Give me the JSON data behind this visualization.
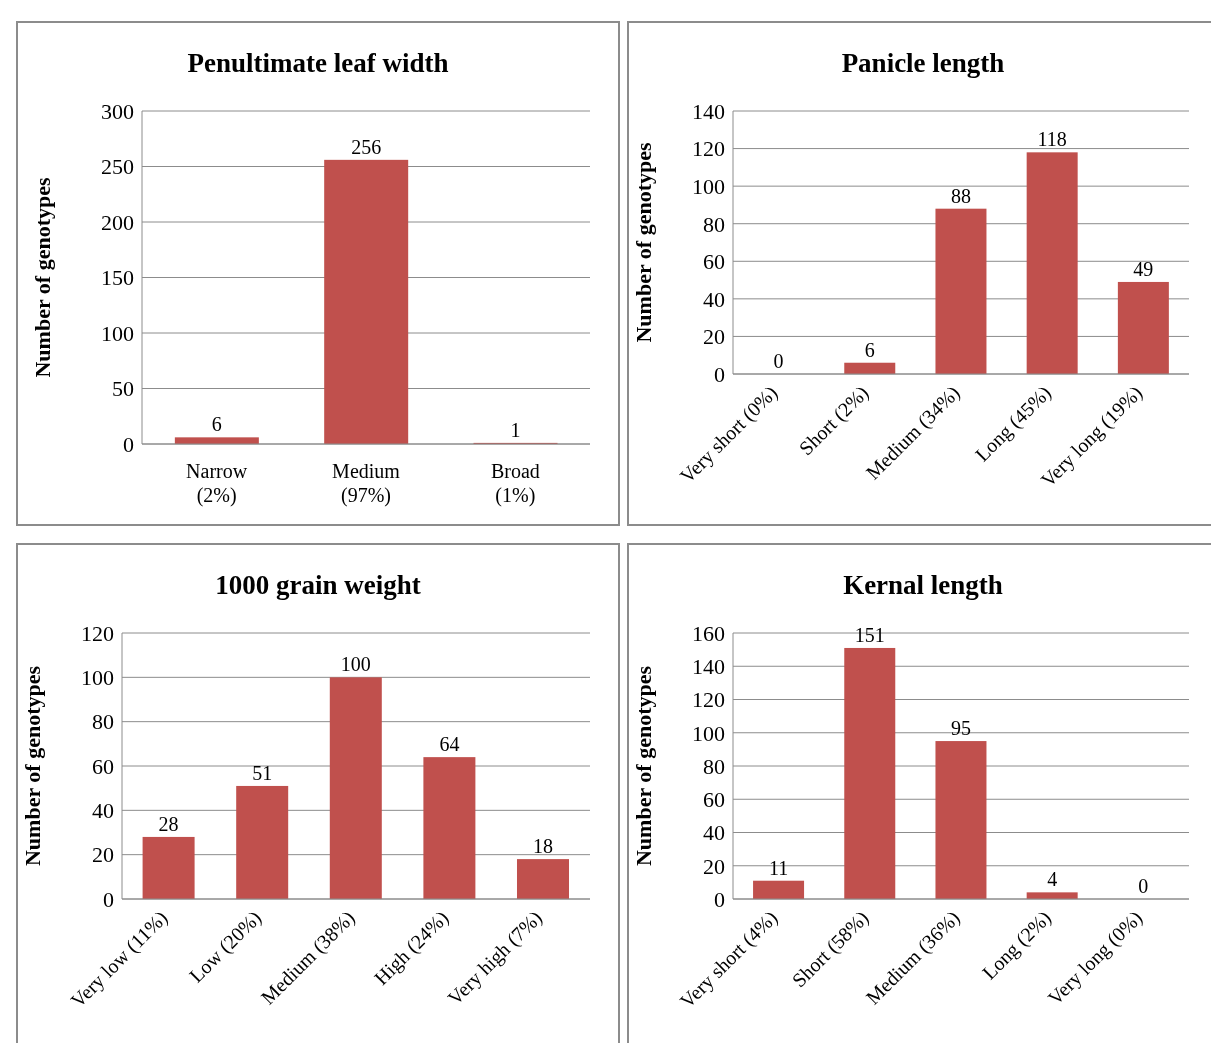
{
  "chart_data": [
    {
      "type": "bar",
      "title": "Penultimate leaf width",
      "ylabel": "Number of genotypes",
      "categories": [
        "Narrow (2%)",
        "Medium (97%)",
        "Broad (1%)"
      ],
      "values": [
        6,
        256,
        1
      ],
      "color": "#c0504d",
      "ylim": [
        0,
        300
      ],
      "yticks": [
        0,
        50,
        100,
        150,
        200,
        250,
        300
      ],
      "grid": "y",
      "data_labels": true,
      "legend": false
    },
    {
      "type": "bar",
      "title": "Panicle length",
      "ylabel": "Number of genotypes",
      "categories": [
        "Very short (0%)",
        "Short (2%)",
        "Medium (34%)",
        "Long (45%)",
        "Very long (19%)"
      ],
      "values": [
        0,
        6,
        88,
        118,
        49
      ],
      "color": "#c0504d",
      "ylim": [
        0,
        140
      ],
      "yticks": [
        0,
        20,
        40,
        60,
        80,
        100,
        120,
        140
      ],
      "grid": "y",
      "data_labels": true,
      "legend": false
    },
    {
      "type": "bar",
      "title": "1000 grain weight",
      "ylabel": "Number of genotypes",
      "categories": [
        "Very low (11%)",
        "Low (20%)",
        "Medium (38%)",
        "High (24%)",
        "Very high (7%)"
      ],
      "values": [
        28,
        51,
        100,
        64,
        18
      ],
      "color": "#c0504d",
      "ylim": [
        0,
        120
      ],
      "yticks": [
        0,
        20,
        40,
        60,
        80,
        100,
        120
      ],
      "grid": "y",
      "data_labels": true,
      "legend": false
    },
    {
      "type": "bar",
      "title": "Kernal length",
      "ylabel": "Number of genotypes",
      "categories": [
        "Very short (4%)",
        "Short (58%)",
        "Medium (36%)",
        "Long (2%)",
        "Very long (0%)"
      ],
      "values": [
        11,
        151,
        95,
        4,
        0
      ],
      "color": "#c0504d",
      "ylim": [
        0,
        160
      ],
      "yticks": [
        0,
        20,
        40,
        60,
        80,
        100,
        120,
        140,
        160
      ],
      "grid": "y",
      "data_labels": true,
      "legend": false
    }
  ]
}
